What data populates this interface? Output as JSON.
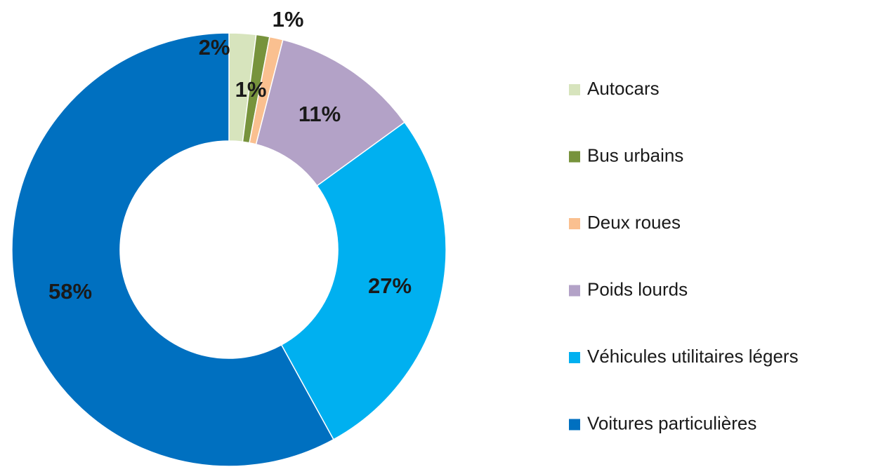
{
  "chart_data": {
    "type": "donut",
    "categories": [
      "Autocars",
      "Bus urbains",
      "Deux roues",
      "Poids lourds",
      "Véhicules utilitaires légers",
      "Voitures particulières"
    ],
    "values": [
      2,
      1,
      1,
      11,
      27,
      58
    ],
    "value_labels": [
      "2%",
      "1%",
      "1%",
      "11%",
      "27%",
      "58%"
    ],
    "colors": [
      "#d7e4bd",
      "#77933c",
      "#fac090",
      "#b3a2c7",
      "#00b0f0",
      "#0070c0"
    ],
    "legend": "right"
  }
}
